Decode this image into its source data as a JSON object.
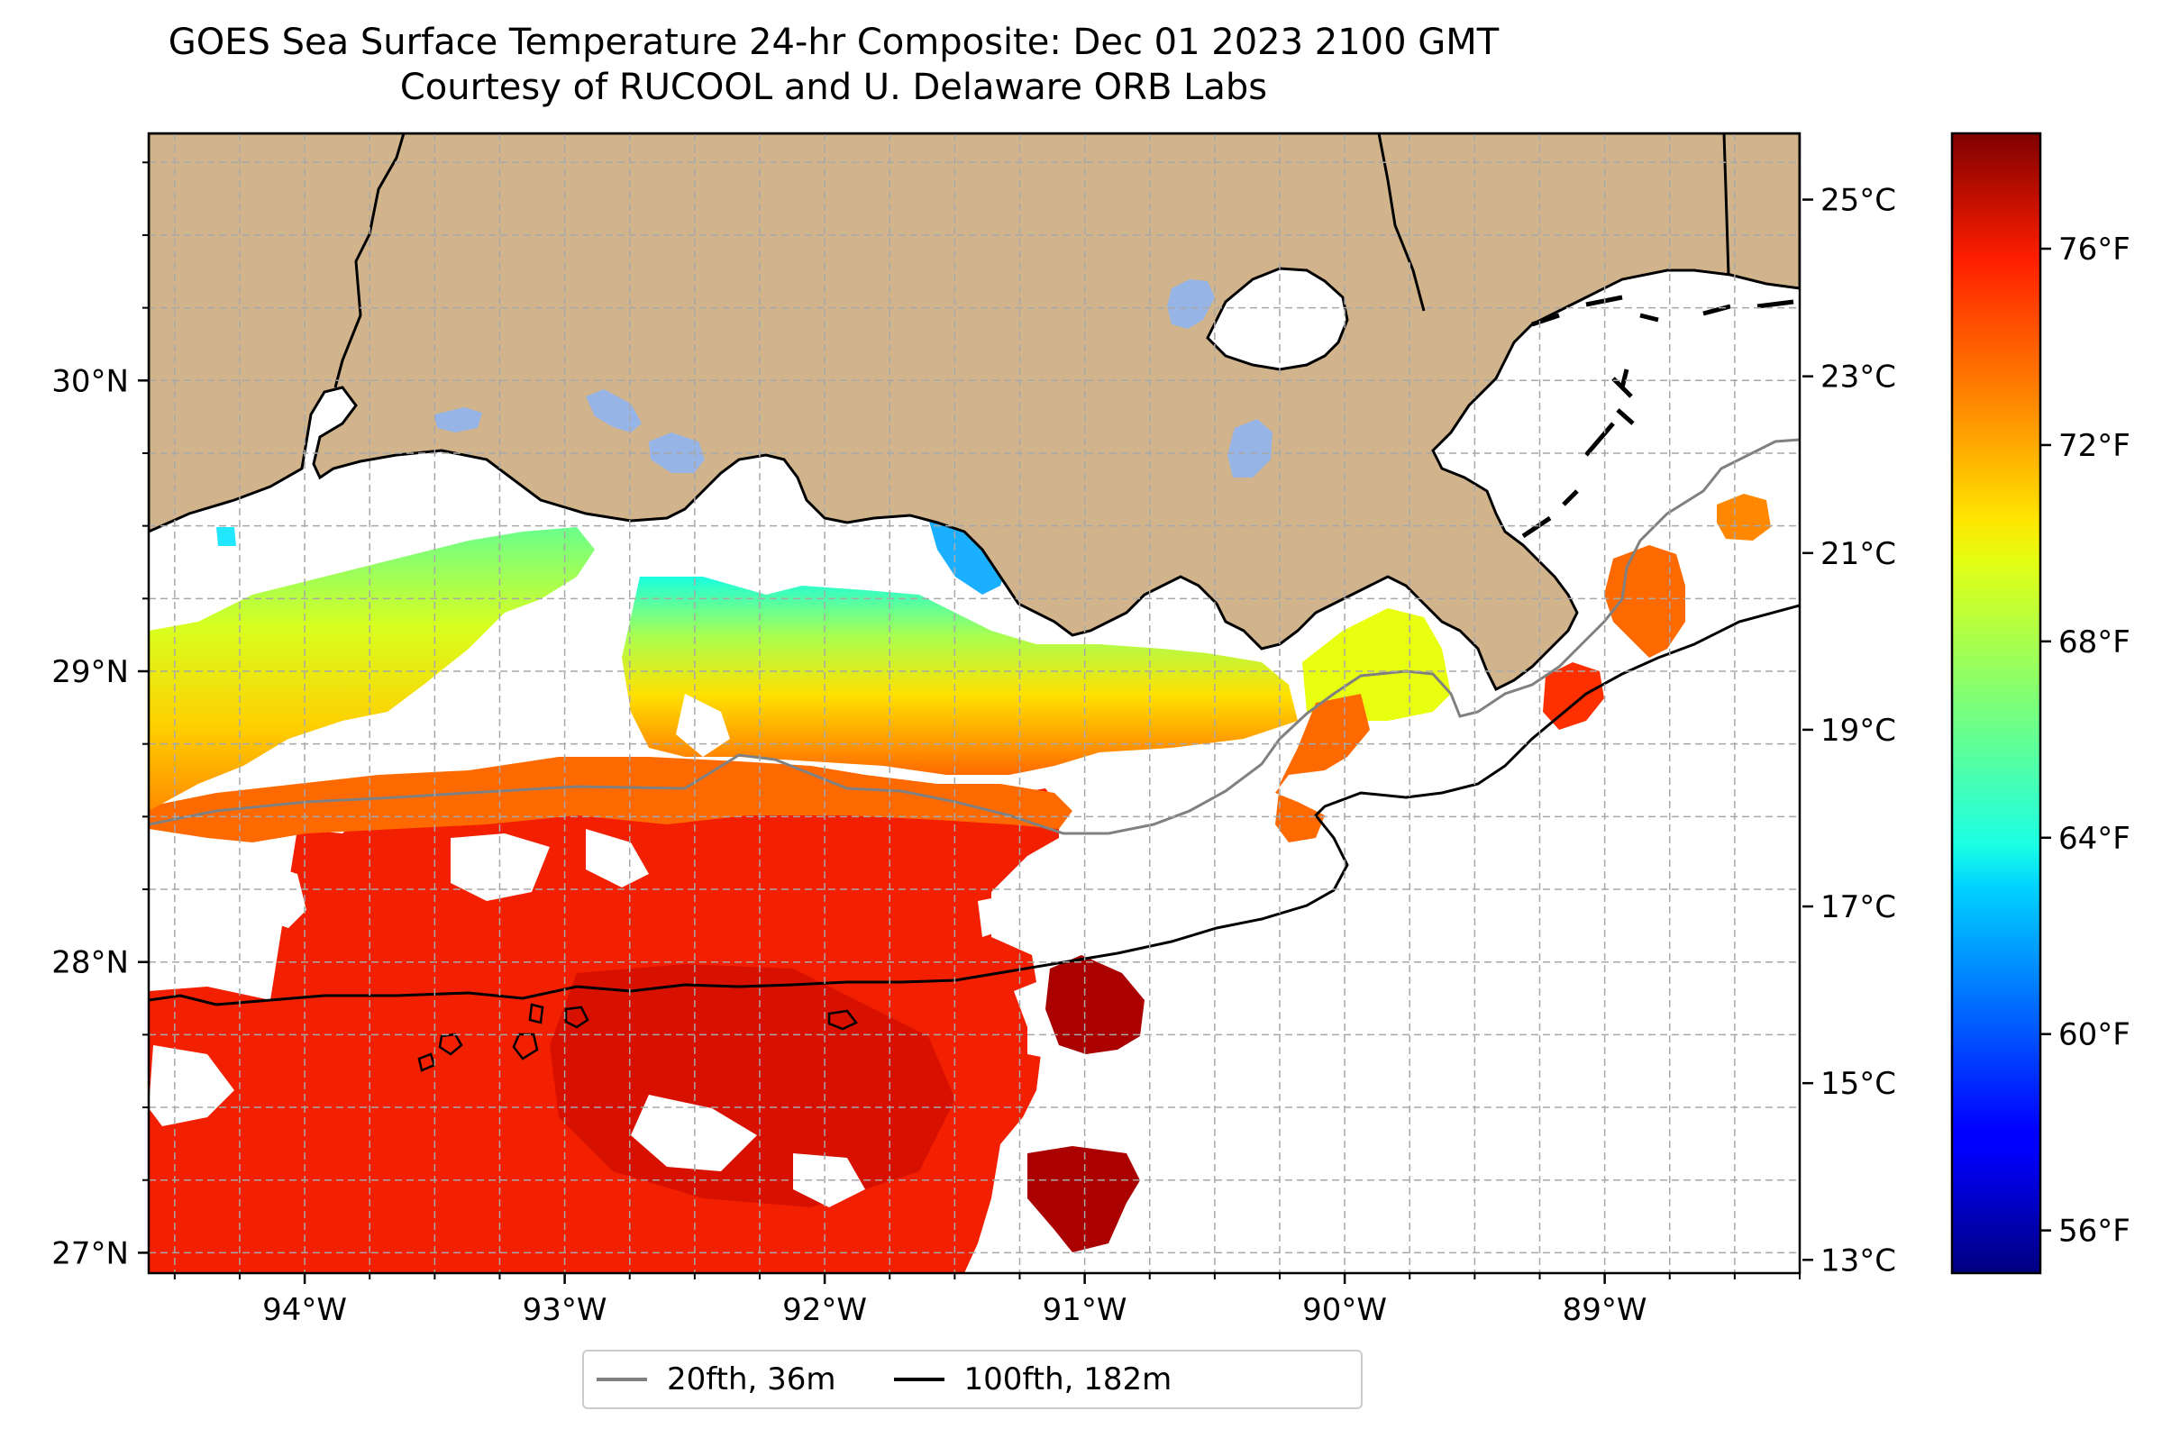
{
  "title": {
    "line1": "GOES Sea Surface Temperature 24-hr Composite: Dec 01 2023 2100 GMT",
    "line2": "Courtesy of RUCOOL and U. Delaware ORB Labs"
  },
  "map": {
    "lon_range": [
      -94.6,
      -88.25
    ],
    "lat_range": [
      26.93,
      30.85
    ],
    "land_color": "#d2b48c",
    "water_color": "#ffffff",
    "gridlines": true,
    "lat_ticks": [
      {
        "value": 30,
        "label": "30°N"
      },
      {
        "value": 29,
        "label": "29°N"
      },
      {
        "value": 28,
        "label": "28°N"
      },
      {
        "value": 27,
        "label": "27°N"
      }
    ],
    "lon_ticks": [
      {
        "value": -94,
        "label": "94°W"
      },
      {
        "value": -93,
        "label": "93°W"
      },
      {
        "value": -92,
        "label": "92°W"
      },
      {
        "value": -91,
        "label": "91°W"
      },
      {
        "value": -90,
        "label": "90°W"
      },
      {
        "value": -89,
        "label": "89°W"
      }
    ]
  },
  "colorbar": {
    "colormap": "jet",
    "celsius_ticks": [
      {
        "value": 25,
        "label": "25°C"
      },
      {
        "value": 23,
        "label": "23°C"
      },
      {
        "value": 21,
        "label": "21°C"
      },
      {
        "value": 19,
        "label": "19°C"
      },
      {
        "value": 17,
        "label": "17°C"
      },
      {
        "value": 15,
        "label": "15°C"
      },
      {
        "value": 13,
        "label": "13°C"
      }
    ],
    "fahrenheit_ticks": [
      {
        "value": 76,
        "label": "76°F"
      },
      {
        "value": 72,
        "label": "72°F"
      },
      {
        "value": 68,
        "label": "68°F"
      },
      {
        "value": 64,
        "label": "64°F"
      },
      {
        "value": 60,
        "label": "60°F"
      },
      {
        "value": 56,
        "label": "56°F"
      }
    ]
  },
  "legend": {
    "items": [
      {
        "label": "20fth, 36m",
        "color": "#808080"
      },
      {
        "label": "100fth, 182m",
        "color": "#000000"
      }
    ]
  }
}
